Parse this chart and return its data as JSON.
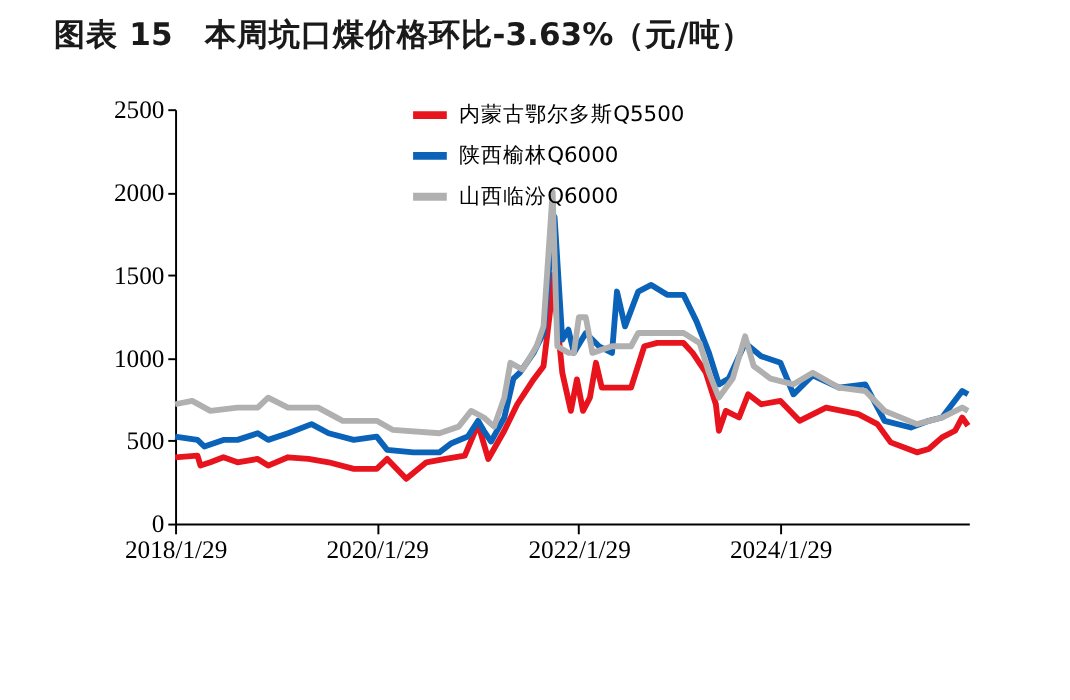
{
  "chart_data": {
    "type": "line",
    "title": "图表 15　本周坑口煤价格环比-3.63%（元/吨）",
    "xlim": [
      "2018-01-29",
      "2025-12-12"
    ],
    "xticks": [
      {
        "value": "2018-01-29",
        "label": "2018/1/29"
      },
      {
        "value": "2020-01-29",
        "label": "2020/1/29"
      },
      {
        "value": "2022-01-29",
        "label": "2022/1/29"
      },
      {
        "value": "2024-01-29",
        "label": "2024/1/29"
      }
    ],
    "ylim": [
      0,
      2500
    ],
    "yticks": [
      0,
      500,
      1000,
      1500,
      2000,
      2500
    ],
    "grid": false,
    "legend": "top",
    "marker": "none",
    "line_style": "solid",
    "series": [
      {
        "name": "内蒙古鄂尔多斯Q5500",
        "color": "#e8141d",
        "x": [
          "2018-01-29",
          "2018-04-20",
          "2018-05-01",
          "2018-06-06",
          "2018-07-23",
          "2018-09-12",
          "2018-11-24",
          "2019-01-01",
          "2019-03-14",
          "2019-05-27",
          "2019-08-08",
          "2019-11-07",
          "2020-01-29",
          "2020-03-07",
          "2020-05-15",
          "2020-07-27",
          "2020-10-04",
          "2020-12-13",
          "2021-01-30",
          "2021-03-08",
          "2021-05-05",
          "2021-06-21",
          "2021-08-19",
          "2021-09-24",
          "2021-10-19",
          "2021-10-27",
          "2021-12-01",
          "2022-01-01",
          "2022-01-23",
          "2022-02-14",
          "2022-03-11",
          "2022-04-02",
          "2022-04-23",
          "2022-08-07",
          "2022-09-24",
          "2022-11-10",
          "2023-02-13",
          "2023-03-18",
          "2023-05-05",
          "2023-06-10",
          "2023-06-21",
          "2023-07-16",
          "2023-09-02",
          "2023-10-05",
          "2023-11-21",
          "2024-01-30",
          "2024-04-08",
          "2024-07-13",
          "2024-11-07",
          "2025-01-15",
          "2025-03-04",
          "2025-06-07",
          "2025-07-20",
          "2025-09-06",
          "2025-10-23",
          "2025-11-18",
          "2025-12-09"
        ],
        "values": [
          400,
          410,
          350,
          370,
          400,
          370,
          390,
          350,
          400,
          390,
          370,
          330,
          330,
          390,
          270,
          370,
          390,
          410,
          600,
          390,
          560,
          720,
          870,
          950,
          1300,
          1500,
          910,
          680,
          870,
          680,
          760,
          970,
          820,
          820,
          1070,
          1090,
          1090,
          1030,
          910,
          720,
          560,
          680,
          640,
          780,
          720,
          740,
          620,
          700,
          660,
          600,
          490,
          430,
          450,
          520,
          560,
          640,
          590
        ]
      },
      {
        "name": "陕西榆林Q6000",
        "color": "#0a63b8",
        "x": [
          "2018-01-29",
          "2018-04-20",
          "2018-05-15",
          "2018-07-23",
          "2018-09-12",
          "2018-11-24",
          "2019-01-01",
          "2019-03-14",
          "2019-06-07",
          "2019-08-08",
          "2019-11-07",
          "2020-01-29",
          "2020-03-07",
          "2020-06-10",
          "2020-09-12",
          "2020-10-26",
          "2020-12-24",
          "2021-01-30",
          "2021-02-20",
          "2021-03-18",
          "2021-05-05",
          "2021-06-07",
          "2021-06-30",
          "2021-08-19",
          "2021-09-24",
          "2021-10-16",
          "2021-11-03",
          "2021-12-01",
          "2021-12-23",
          "2022-01-12",
          "2022-02-24",
          "2022-04-13",
          "2022-05-30",
          "2022-06-17",
          "2022-07-16",
          "2022-09-02",
          "2022-10-19",
          "2022-12-16",
          "2023-02-13",
          "2023-04-01",
          "2023-05-16",
          "2023-06-21",
          "2023-07-27",
          "2023-09-24",
          "2023-11-21",
          "2024-01-30",
          "2024-03-17",
          "2024-05-26",
          "2024-08-29",
          "2024-12-02",
          "2025-02-10",
          "2025-05-16",
          "2025-07-20",
          "2025-09-06",
          "2025-11-18",
          "2025-12-09"
        ],
        "values": [
          525,
          505,
          465,
          505,
          505,
          545,
          505,
          545,
          600,
          545,
          505,
          525,
          445,
          430,
          430,
          485,
          525,
          620,
          560,
          495,
          640,
          875,
          910,
          1030,
          1150,
          1570,
          1850,
          1110,
          1170,
          1030,
          1150,
          1070,
          1030,
          1400,
          1190,
          1400,
          1440,
          1380,
          1380,
          1220,
          1030,
          840,
          875,
          1090,
          1010,
          970,
          780,
          895,
          820,
          840,
          620,
          580,
          620,
          640,
          800,
          780
        ]
      },
      {
        "name": "山西临汾Q6000",
        "color": "#b0b0b0",
        "x": [
          "2018-01-29",
          "2018-04-01",
          "2018-06-06",
          "2018-09-12",
          "2018-11-24",
          "2019-01-01",
          "2019-03-14",
          "2019-07-01",
          "2019-09-28",
          "2020-01-29",
          "2020-03-28",
          "2020-09-12",
          "2020-11-21",
          "2021-01-05",
          "2021-02-20",
          "2021-03-29",
          "2021-05-05",
          "2021-05-27",
          "2021-07-10",
          "2021-08-30",
          "2021-09-24",
          "2021-10-27",
          "2021-11-13",
          "2021-12-23",
          "2022-01-12",
          "2022-01-30",
          "2022-02-24",
          "2022-03-20",
          "2022-05-30",
          "2022-08-07",
          "2022-09-02",
          "2022-12-16",
          "2023-02-13",
          "2023-04-12",
          "2023-05-16",
          "2023-06-21",
          "2023-08-10",
          "2023-09-24",
          "2023-10-25",
          "2023-12-25",
          "2024-03-17",
          "2024-05-26",
          "2024-08-29",
          "2024-12-02",
          "2025-02-10",
          "2025-06-07",
          "2025-09-06",
          "2025-11-18",
          "2025-12-09"
        ],
        "values": [
          720,
          740,
          680,
          700,
          700,
          760,
          700,
          700,
          620,
          620,
          565,
          545,
          585,
          680,
          640,
          585,
          760,
          970,
          930,
          1070,
          1190,
          2000,
          1070,
          1030,
          1030,
          1245,
          1245,
          1030,
          1070,
          1070,
          1150,
          1150,
          1150,
          1090,
          910,
          760,
          875,
          1130,
          950,
          875,
          840,
          910,
          820,
          800,
          680,
          600,
          640,
          700,
          680
        ]
      }
    ]
  }
}
